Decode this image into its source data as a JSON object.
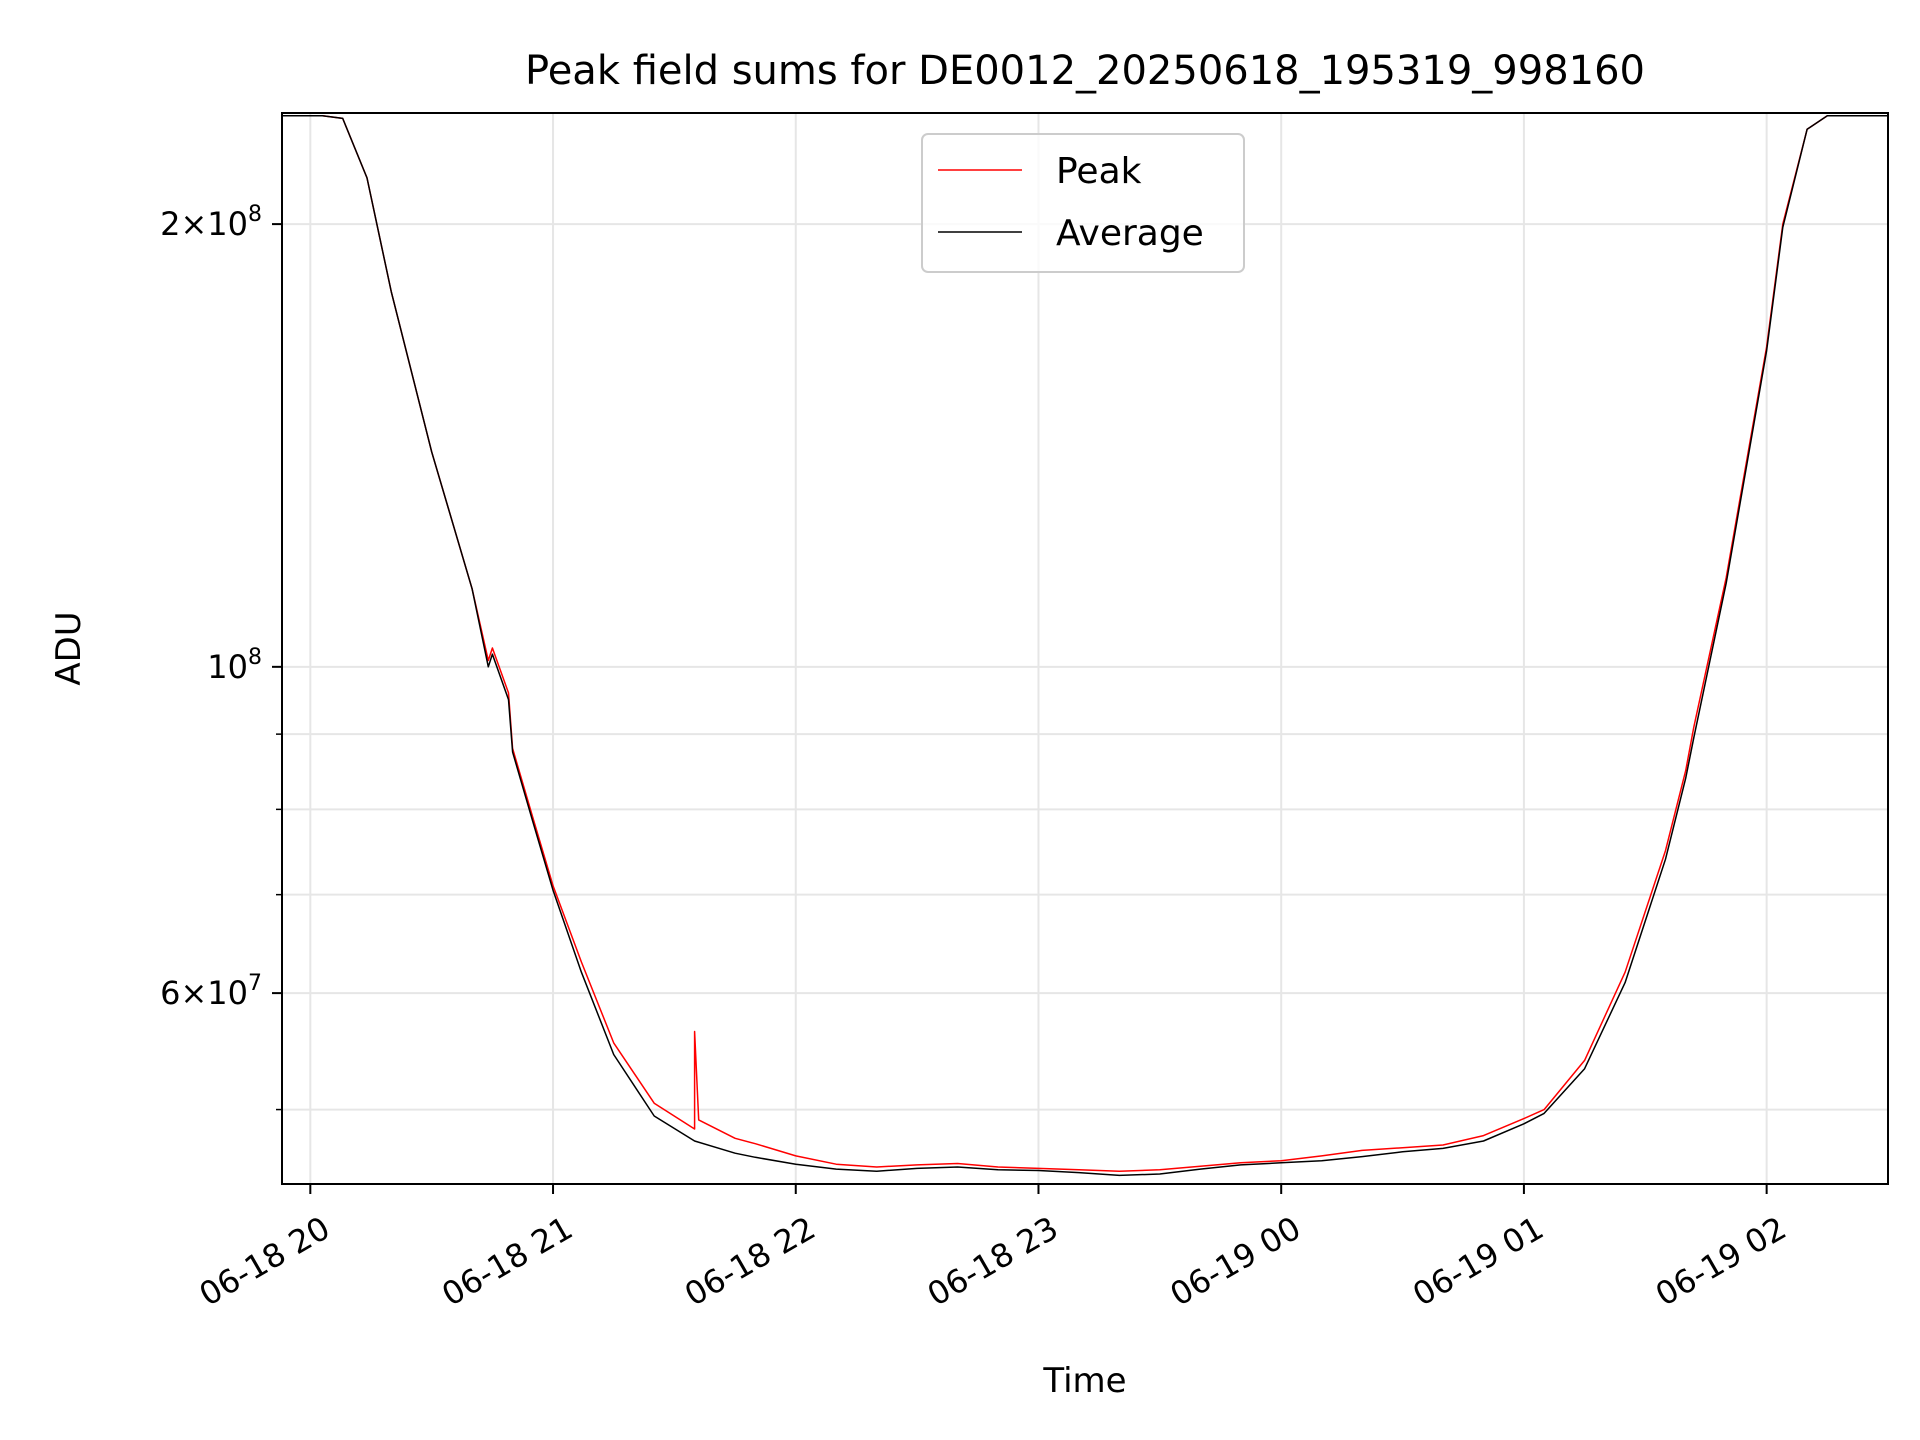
{
  "chart_data": {
    "type": "line",
    "title": "Peak field sums for DE0012_20250618_195319_998160",
    "xlabel": "Time",
    "ylabel": "ADU",
    "yscale": "log",
    "ylim": [
      44500000,
      238000000
    ],
    "xlim": [
      "2025-06-18 19:53",
      "2025-06-19 02:30"
    ],
    "grid": true,
    "legend_position": "top-center",
    "x_ticks": [
      "06-18 20",
      "06-18 21",
      "06-18 22",
      "06-18 23",
      "06-19 00",
      "06-19 01",
      "06-19 02"
    ],
    "y_major_ticks": [
      {
        "value": 60000000,
        "mantissa": "6",
        "exponent": "7"
      },
      {
        "value": 100000000,
        "mantissa": "",
        "exponent": "8"
      },
      {
        "value": 200000000,
        "mantissa": "2",
        "exponent": "8"
      }
    ],
    "y_minor_values": [
      50000000,
      70000000,
      80000000,
      90000000
    ],
    "colors": {
      "peak": "#ff0000",
      "average": "#000000",
      "grid": "#e6e6e6"
    },
    "series": [
      {
        "name": "Peak",
        "color": "#ff0000",
        "points": [
          [
            "2025-06-18 19:53",
            237000000
          ],
          [
            "2025-06-18 20:03",
            237000000
          ],
          [
            "2025-06-18 20:08",
            236000000
          ],
          [
            "2025-06-18 20:14",
            215000000
          ],
          [
            "2025-06-18 20:20",
            180000000
          ],
          [
            "2025-06-18 20:30",
            140000000
          ],
          [
            "2025-06-18 20:40",
            113000000
          ],
          [
            "2025-06-18 20:44",
            101000000
          ],
          [
            "2025-06-18 20:45",
            103000000
          ],
          [
            "2025-06-18 20:49",
            96000000
          ],
          [
            "2025-06-18 20:50",
            88000000
          ],
          [
            "2025-06-18 20:55",
            79000000
          ],
          [
            "2025-06-18 21:00",
            71000000
          ],
          [
            "2025-06-18 21:07",
            63000000
          ],
          [
            "2025-06-18 21:15",
            55500000
          ],
          [
            "2025-06-18 21:25",
            50500000
          ],
          [
            "2025-06-18 21:35",
            48500000
          ],
          [
            "2025-06-18 21:35",
            56500000
          ],
          [
            "2025-06-18 21:36",
            49200000
          ],
          [
            "2025-06-18 21:45",
            47800000
          ],
          [
            "2025-06-18 21:50",
            47400000
          ],
          [
            "2025-06-18 22:00",
            46500000
          ],
          [
            "2025-06-18 22:10",
            45900000
          ],
          [
            "2025-06-18 22:20",
            45700000
          ],
          [
            "2025-06-18 22:30",
            45850000
          ],
          [
            "2025-06-18 22:40",
            45950000
          ],
          [
            "2025-06-18 22:50",
            45700000
          ],
          [
            "2025-06-18 23:00",
            45600000
          ],
          [
            "2025-06-18 23:10",
            45500000
          ],
          [
            "2025-06-18 23:20",
            45400000
          ],
          [
            "2025-06-18 23:30",
            45500000
          ],
          [
            "2025-06-18 23:40",
            45750000
          ],
          [
            "2025-06-18 23:50",
            46000000
          ],
          [
            "2025-06-19 00:00",
            46150000
          ],
          [
            "2025-06-19 00:10",
            46500000
          ],
          [
            "2025-06-19 00:20",
            46900000
          ],
          [
            "2025-06-19 00:30",
            47100000
          ],
          [
            "2025-06-19 00:40",
            47300000
          ],
          [
            "2025-06-19 00:50",
            48000000
          ],
          [
            "2025-06-19 01:00",
            49300000
          ],
          [
            "2025-06-19 01:05",
            50000000
          ],
          [
            "2025-06-19 01:15",
            54000000
          ],
          [
            "2025-06-19 01:25",
            62000000
          ],
          [
            "2025-06-19 01:35",
            75000000
          ],
          [
            "2025-06-19 01:40",
            85000000
          ],
          [
            "2025-06-19 01:42",
            91000000
          ],
          [
            "2025-06-19 01:50",
            115000000
          ],
          [
            "2025-06-19 02:00",
            165000000
          ],
          [
            "2025-06-19 02:04",
            200000000
          ],
          [
            "2025-06-19 02:10",
            232000000
          ],
          [
            "2025-06-19 02:15",
            237000000
          ],
          [
            "2025-06-19 02:30",
            237000000
          ]
        ]
      },
      {
        "name": "Average",
        "color": "#000000",
        "points": [
          [
            "2025-06-18 19:53",
            237000000
          ],
          [
            "2025-06-18 20:03",
            237000000
          ],
          [
            "2025-06-18 20:08",
            236000000
          ],
          [
            "2025-06-18 20:14",
            215000000
          ],
          [
            "2025-06-18 20:20",
            180000000
          ],
          [
            "2025-06-18 20:30",
            140000000
          ],
          [
            "2025-06-18 20:40",
            113000000
          ],
          [
            "2025-06-18 20:44",
            100000000
          ],
          [
            "2025-06-18 20:45",
            102000000
          ],
          [
            "2025-06-18 20:49",
            95000000
          ],
          [
            "2025-06-18 20:50",
            87500000
          ],
          [
            "2025-06-18 20:55",
            78500000
          ],
          [
            "2025-06-18 21:00",
            70500000
          ],
          [
            "2025-06-18 21:07",
            62000000
          ],
          [
            "2025-06-18 21:15",
            54500000
          ],
          [
            "2025-06-18 21:25",
            49500000
          ],
          [
            "2025-06-18 21:35",
            47600000
          ],
          [
            "2025-06-18 21:45",
            46700000
          ],
          [
            "2025-06-18 21:50",
            46400000
          ],
          [
            "2025-06-18 22:00",
            45900000
          ],
          [
            "2025-06-18 22:10",
            45550000
          ],
          [
            "2025-06-18 22:20",
            45400000
          ],
          [
            "2025-06-18 22:30",
            45600000
          ],
          [
            "2025-06-18 22:40",
            45700000
          ],
          [
            "2025-06-18 22:50",
            45500000
          ],
          [
            "2025-06-18 23:00",
            45450000
          ],
          [
            "2025-06-18 23:10",
            45300000
          ],
          [
            "2025-06-18 23:20",
            45100000
          ],
          [
            "2025-06-18 23:30",
            45200000
          ],
          [
            "2025-06-18 23:40",
            45550000
          ],
          [
            "2025-06-18 23:50",
            45850000
          ],
          [
            "2025-06-19 00:00",
            46000000
          ],
          [
            "2025-06-19 00:10",
            46150000
          ],
          [
            "2025-06-19 00:20",
            46450000
          ],
          [
            "2025-06-19 00:30",
            46800000
          ],
          [
            "2025-06-19 00:40",
            47050000
          ],
          [
            "2025-06-19 00:50",
            47600000
          ],
          [
            "2025-06-19 01:00",
            48900000
          ],
          [
            "2025-06-19 01:05",
            49700000
          ],
          [
            "2025-06-19 01:15",
            53300000
          ],
          [
            "2025-06-19 01:25",
            61000000
          ],
          [
            "2025-06-19 01:35",
            74000000
          ],
          [
            "2025-06-19 01:40",
            84000000
          ],
          [
            "2025-06-19 01:42",
            89500000
          ],
          [
            "2025-06-19 01:50",
            114000000
          ],
          [
            "2025-06-19 02:00",
            164000000
          ],
          [
            "2025-06-19 02:04",
            199000000
          ],
          [
            "2025-06-19 02:10",
            232000000
          ],
          [
            "2025-06-19 02:15",
            237000000
          ],
          [
            "2025-06-19 02:30",
            237000000
          ]
        ]
      }
    ]
  }
}
